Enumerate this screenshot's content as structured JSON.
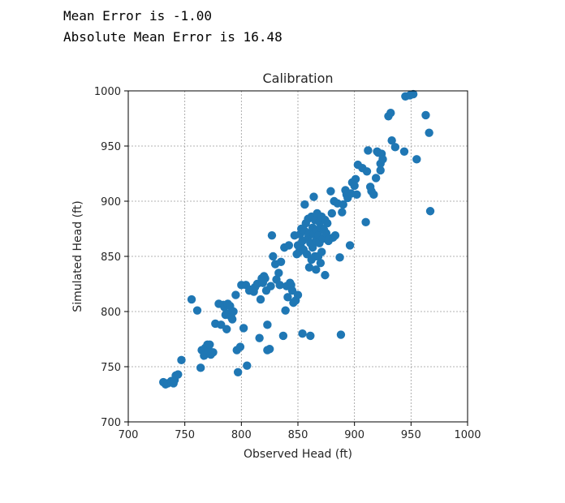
{
  "output": {
    "mean_error": "Mean Error is -1.00",
    "abs_mean_error": "Absolute Mean Error is 16.48"
  },
  "chart_data": {
    "type": "scatter",
    "title": "Calibration",
    "xlabel": "Observed Head (ft)",
    "ylabel": "Simulated Head (ft)",
    "xlim": [
      700,
      1000
    ],
    "ylim": [
      700,
      1000
    ],
    "xticks": [
      700,
      750,
      800,
      850,
      900,
      950,
      1000
    ],
    "yticks": [
      700,
      750,
      800,
      850,
      900,
      950,
      1000
    ],
    "grid": true,
    "marker_color": "#1f77b4",
    "points": [
      [
        731,
        736
      ],
      [
        733,
        734
      ],
      [
        735,
        735
      ],
      [
        738,
        737
      ],
      [
        740,
        735
      ],
      [
        741,
        738
      ],
      [
        742,
        742
      ],
      [
        744,
        743
      ],
      [
        747,
        756
      ],
      [
        756,
        811
      ],
      [
        761,
        801
      ],
      [
        764,
        749
      ],
      [
        765,
        765
      ],
      [
        767,
        760
      ],
      [
        768,
        767
      ],
      [
        770,
        770
      ],
      [
        771,
        765
      ],
      [
        772,
        770
      ],
      [
        773,
        761
      ],
      [
        775,
        763
      ],
      [
        777,
        789
      ],
      [
        780,
        807
      ],
      [
        782,
        788
      ],
      [
        784,
        806
      ],
      [
        785,
        804
      ],
      [
        786,
        797
      ],
      [
        787,
        784
      ],
      [
        788,
        807
      ],
      [
        789,
        798
      ],
      [
        790,
        805
      ],
      [
        791,
        795
      ],
      [
        792,
        793
      ],
      [
        793,
        800
      ],
      [
        795,
        815
      ],
      [
        796,
        765
      ],
      [
        797,
        745
      ],
      [
        799,
        768
      ],
      [
        800,
        824
      ],
      [
        802,
        785
      ],
      [
        804,
        824
      ],
      [
        805,
        751
      ],
      [
        807,
        819
      ],
      [
        809,
        820
      ],
      [
        811,
        818
      ],
      [
        812,
        822
      ],
      [
        814,
        825
      ],
      [
        816,
        776
      ],
      [
        817,
        811
      ],
      [
        818,
        830
      ],
      [
        819,
        826
      ],
      [
        820,
        832
      ],
      [
        821,
        830
      ],
      [
        822,
        819
      ],
      [
        823,
        765
      ],
      [
        823,
        788
      ],
      [
        825,
        766
      ],
      [
        826,
        823
      ],
      [
        827,
        869
      ],
      [
        828,
        850
      ],
      [
        830,
        843
      ],
      [
        831,
        829
      ],
      [
        833,
        835
      ],
      [
        834,
        824
      ],
      [
        835,
        845
      ],
      [
        837,
        778
      ],
      [
        838,
        858
      ],
      [
        839,
        801
      ],
      [
        840,
        823
      ],
      [
        841,
        813
      ],
      [
        842,
        860
      ],
      [
        843,
        826
      ],
      [
        844,
        824
      ],
      [
        845,
        819
      ],
      [
        846,
        808
      ],
      [
        847,
        869
      ],
      [
        848,
        810
      ],
      [
        849,
        852
      ],
      [
        850,
        815
      ],
      [
        850,
        860
      ],
      [
        851,
        854
      ],
      [
        852,
        870
      ],
      [
        853,
        858
      ],
      [
        853,
        875
      ],
      [
        854,
        780
      ],
      [
        854,
        864
      ],
      [
        855,
        856
      ],
      [
        856,
        873
      ],
      [
        856,
        897
      ],
      [
        857,
        880
      ],
      [
        858,
        852
      ],
      [
        859,
        867
      ],
      [
        859,
        884
      ],
      [
        860,
        840
      ],
      [
        860,
        871
      ],
      [
        861,
        778
      ],
      [
        861,
        862
      ],
      [
        862,
        847
      ],
      [
        862,
        886
      ],
      [
        863,
        876
      ],
      [
        863,
        858
      ],
      [
        864,
        904
      ],
      [
        864,
        870
      ],
      [
        865,
        850
      ],
      [
        865,
        883
      ],
      [
        866,
        838
      ],
      [
        866,
        864
      ],
      [
        867,
        874
      ],
      [
        867,
        889
      ],
      [
        868,
        869
      ],
      [
        868,
        850
      ],
      [
        869,
        881
      ],
      [
        869,
        862
      ],
      [
        870,
        844
      ],
      [
        870,
        876
      ],
      [
        871,
        854
      ],
      [
        871,
        886
      ],
      [
        872,
        866
      ],
      [
        873,
        874
      ],
      [
        874,
        883
      ],
      [
        874,
        833
      ],
      [
        875,
        871
      ],
      [
        876,
        880
      ],
      [
        877,
        864
      ],
      [
        878,
        866
      ],
      [
        879,
        909
      ],
      [
        880,
        889
      ],
      [
        881,
        867
      ],
      [
        882,
        900
      ],
      [
        883,
        869
      ],
      [
        885,
        898
      ],
      [
        887,
        849
      ],
      [
        888,
        779
      ],
      [
        889,
        890
      ],
      [
        890,
        897
      ],
      [
        892,
        910
      ],
      [
        893,
        906
      ],
      [
        894,
        903
      ],
      [
        896,
        860
      ],
      [
        897,
        907
      ],
      [
        898,
        917
      ],
      [
        900,
        914
      ],
      [
        901,
        920
      ],
      [
        902,
        906
      ],
      [
        903,
        933
      ],
      [
        907,
        930
      ],
      [
        910,
        881
      ],
      [
        911,
        927
      ],
      [
        912,
        946
      ],
      [
        914,
        913
      ],
      [
        915,
        909
      ],
      [
        917,
        906
      ],
      [
        919,
        921
      ],
      [
        920,
        945
      ],
      [
        921,
        944
      ],
      [
        923,
        928
      ],
      [
        923,
        934
      ],
      [
        924,
        943
      ],
      [
        925,
        938
      ],
      [
        930,
        977
      ],
      [
        932,
        980
      ],
      [
        933,
        955
      ],
      [
        936,
        949
      ],
      [
        944,
        945
      ],
      [
        945,
        995
      ],
      [
        949,
        996
      ],
      [
        952,
        997
      ],
      [
        955,
        938
      ],
      [
        963,
        978
      ],
      [
        966,
        962
      ],
      [
        967,
        891
      ]
    ]
  }
}
